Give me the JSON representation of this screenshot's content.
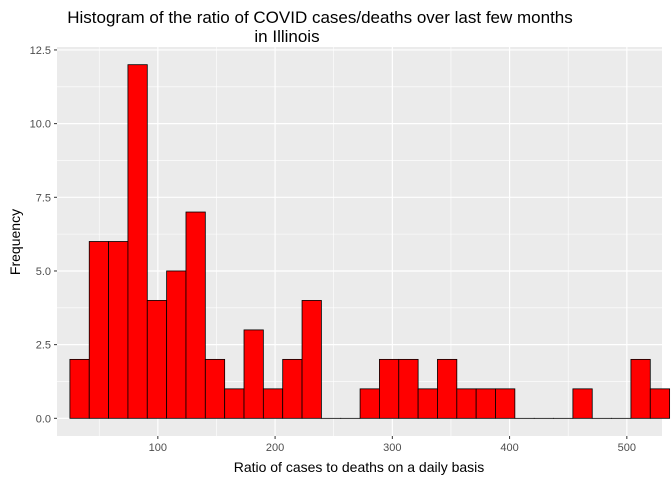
{
  "chart_data": {
    "type": "bar",
    "title_lines": [
      "Histogram of the ratio of COVID cases/deaths over last few months",
      "in Illinois"
    ],
    "xlabel": "Ratio of cases to deaths on a daily basis",
    "ylabel": "Frequency",
    "x_ticks": [
      100,
      200,
      300,
      400,
      500
    ],
    "y_ticks": [
      "0.0",
      "2.5",
      "5.0",
      "7.5",
      "10.0",
      "12.5"
    ],
    "xlim": [
      14,
      530
    ],
    "ylim": [
      -0.6,
      12.6
    ],
    "bin_width": 16.5,
    "bin_start": 25,
    "values": [
      2,
      6,
      6,
      12,
      4,
      5,
      7,
      2,
      1,
      3,
      1,
      2,
      4,
      0,
      0,
      1,
      2,
      2,
      1,
      2,
      1,
      1,
      1,
      0,
      0,
      0,
      1,
      0,
      0,
      2,
      1
    ],
    "grid": true,
    "colors": {
      "panel": "#ebebeb",
      "grid": "#ffffff",
      "bar_fill": "#ff0000",
      "bar_stroke": "#000000"
    }
  }
}
